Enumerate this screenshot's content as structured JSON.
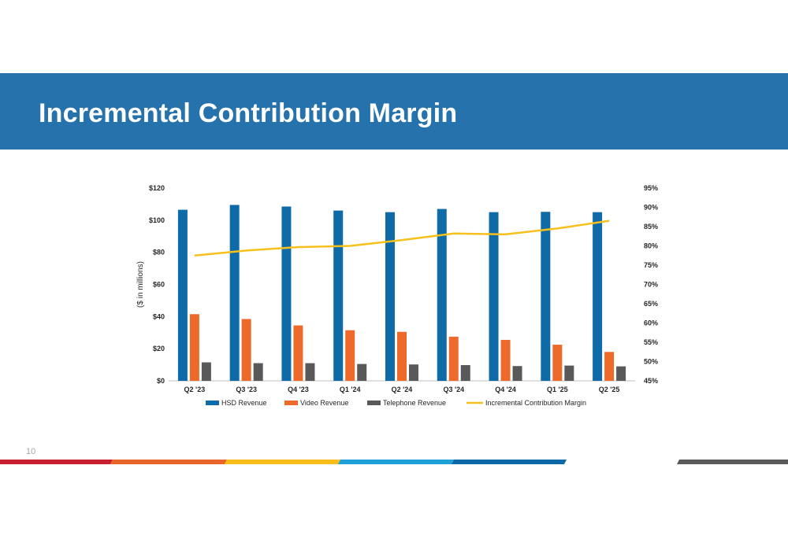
{
  "slide": {
    "title": "Incremental Contribution Margin",
    "page_number": "10"
  },
  "colors": {
    "banner": "#2672ad",
    "hsd": "#0f6aa8",
    "video": "#ee6a2b",
    "telephone": "#595959",
    "margin_line": "#f7c01c",
    "footer": [
      "#c8202f",
      "#e9652a",
      "#f6bd1b",
      "#1fa0d6",
      "#0d68a6",
      "#5a5a5a"
    ]
  },
  "chart_data": {
    "type": "bar",
    "title": "",
    "categories": [
      "Q2 '23",
      "Q3 '23",
      "Q4 '23",
      "Q1 '24",
      "Q2 '24",
      "Q3 '24",
      "Q4 '24",
      "Q1 '25",
      "Q2 '25"
    ],
    "ylabel": "($ in millions)",
    "y_axis": {
      "range": [
        0,
        120
      ],
      "ticks": [
        0,
        20,
        40,
        60,
        80,
        100,
        120
      ],
      "tick_labels": [
        "$0",
        "$20",
        "$40",
        "$60",
        "$80",
        "$100",
        "$120"
      ]
    },
    "y2_axis": {
      "range": [
        45,
        95
      ],
      "ticks": [
        45,
        50,
        55,
        60,
        65,
        70,
        75,
        80,
        85,
        90,
        95
      ],
      "tick_labels": [
        "45%",
        "50%",
        "55%",
        "60%",
        "65%",
        "70%",
        "75%",
        "80%",
        "85%",
        "90%",
        "95%"
      ]
    },
    "series": [
      {
        "name": "HSD Revenue",
        "type": "bar",
        "axis": "left",
        "color": "#0f6aa8",
        "values": [
          106.5,
          109.5,
          108.5,
          106,
          105,
          107,
          105,
          105.2,
          105
        ]
      },
      {
        "name": "Video Revenue",
        "type": "bar",
        "axis": "left",
        "color": "#ee6a2b",
        "values": [
          41.5,
          38.5,
          34.5,
          31.5,
          30.5,
          27.5,
          25.5,
          22.5,
          18
        ]
      },
      {
        "name": "Telephone Revenue",
        "type": "bar",
        "axis": "left",
        "color": "#595959",
        "values": [
          11.5,
          11,
          11,
          10.5,
          10.2,
          9.8,
          9.2,
          9.5,
          9
        ]
      },
      {
        "name": "Incremental Contribution Margin",
        "type": "line",
        "axis": "right",
        "color": "#f7c01c",
        "values": [
          77.5,
          78.8,
          79.7,
          80,
          81.5,
          83.2,
          83,
          84.5,
          86.5
        ]
      }
    ],
    "legend_position": "bottom",
    "grid": false
  }
}
